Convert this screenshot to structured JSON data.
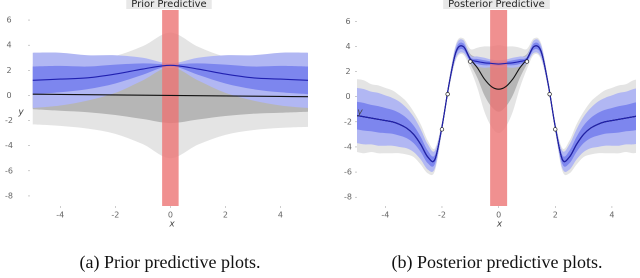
{
  "chart_data": [
    {
      "type": "line",
      "title": "Prior Predictive",
      "xlabel": "x",
      "ylabel": "y",
      "caption": "(a) Prior predictive plots.",
      "xlim": [
        -5.1,
        5.0
      ],
      "ylim": [
        -8.8,
        6.8
      ],
      "xticks": [
        -4,
        -2,
        0,
        2,
        4
      ],
      "yticks": [
        -8,
        -6,
        -4,
        -2,
        0,
        2,
        4,
        6
      ],
      "x": [
        -5,
        -4,
        -3,
        -2,
        -1,
        0,
        1,
        2,
        3,
        4,
        5
      ],
      "highlight": {
        "xlim": [
          -0.3,
          0.3
        ],
        "color": "#ec7474"
      },
      "series": [
        {
          "color": "#111111",
          "values": [
            0.1,
            0.08,
            0.06,
            0.04,
            0.02,
            0,
            -0.02,
            -0.04,
            -0.06,
            -0.08,
            -0.1
          ],
          "bands": [
            {
              "color": "#e4e4e4",
              "spread": [
                2.4,
                2.5,
                2.7,
                3.1,
                3.9,
                5.0,
                3.9,
                3.1,
                2.7,
                2.5,
                2.4
              ]
            },
            {
              "color": "#b6b6b6",
              "spread": [
                1.2,
                1.3,
                1.4,
                1.6,
                1.9,
                2.2,
                1.9,
                1.6,
                1.4,
                1.3,
                1.2
              ]
            }
          ]
        },
        {
          "color": "#2020b0",
          "values": [
            1.2,
            1.3,
            1.4,
            1.7,
            2.1,
            2.4,
            2.1,
            1.7,
            1.4,
            1.3,
            1.2
          ],
          "bands": [
            {
              "color": "#b1b7f3",
              "spread": [
                2.2,
                2.1,
                1.8,
                1.5,
                0.9,
                0.15,
                0.9,
                1.5,
                1.8,
                2.1,
                2.2
              ]
            },
            {
              "color": "#7d86ee",
              "spread": [
                1.1,
                1.05,
                0.9,
                0.75,
                0.45,
                0.08,
                0.45,
                0.75,
                0.9,
                1.05,
                1.1
              ]
            }
          ]
        }
      ]
    },
    {
      "type": "line",
      "title": "Posterior Predictive",
      "xlabel": "x",
      "ylabel": "y",
      "caption": "(b) Posterior predictive plots.",
      "xlim": [
        -5.0,
        4.85
      ],
      "ylim": [
        -8.7,
        6.9
      ],
      "xticks": [
        -4,
        -2,
        0,
        2,
        4
      ],
      "yticks": [
        -8,
        -6,
        -4,
        -2,
        0,
        2,
        4,
        6
      ],
      "x": [
        -5,
        -4.75,
        -4.5,
        -4.25,
        -4,
        -3.75,
        -3.5,
        -3.25,
        -3,
        -2.75,
        -2.5,
        -2.25,
        -2,
        -1.75,
        -1.5,
        -1.25,
        -1,
        -0.75,
        -0.5,
        -0.25,
        0,
        0.25,
        0.5,
        0.75,
        1,
        1.25,
        1.5,
        1.75,
        2,
        2.25,
        2.5,
        2.75,
        3,
        3.25,
        3.5,
        3.75,
        4,
        4.25,
        4.5,
        4.75,
        5
      ],
      "highlight": {
        "xlim": [
          -0.3,
          0.3
        ],
        "color": "#ec7474"
      },
      "series": [
        {
          "color": "#111111",
          "values": [
            -1.5,
            -1.6,
            -1.7,
            -1.8,
            -1.9,
            -2.0,
            -2.2,
            -2.5,
            -3.0,
            -3.8,
            -4.8,
            -5.0,
            -2.4,
            1.0,
            3.6,
            4.0,
            3.0,
            2.3,
            1.4,
            0.8,
            0.6,
            0.8,
            1.4,
            2.3,
            3.0,
            4.0,
            3.6,
            1.0,
            -2.4,
            -5.0,
            -4.8,
            -3.8,
            -3.0,
            -2.5,
            -2.2,
            -2.0,
            -1.9,
            -1.8,
            -1.7,
            -1.6,
            -1.5
          ],
          "bands": [
            {
              "color": "#e4e4e4",
              "spread": [
                2.9,
                2.9,
                2.7,
                2.7,
                2.6,
                2.5,
                2.3,
                2.1,
                1.8,
                1.6,
                1.3,
                0.9,
                0.4,
                0.4,
                0.65,
                0.65,
                0.8,
                1.6,
                2.6,
                3.2,
                3.5,
                3.2,
                2.6,
                1.6,
                0.8,
                0.65,
                0.65,
                0.4,
                0.4,
                0.9,
                1.3,
                1.6,
                1.8,
                2.1,
                2.3,
                2.5,
                2.6,
                2.7,
                2.7,
                2.9,
                2.9
              ]
            },
            {
              "color": "#b6b6b6",
              "spread": [
                1.45,
                1.45,
                1.35,
                1.35,
                1.3,
                1.25,
                1.15,
                1.05,
                0.9,
                0.8,
                0.65,
                0.45,
                0.2,
                0.2,
                0.33,
                0.33,
                0.4,
                0.8,
                1.3,
                1.6,
                1.8,
                1.6,
                1.3,
                0.8,
                0.4,
                0.33,
                0.33,
                0.2,
                0.2,
                0.45,
                0.65,
                0.8,
                0.9,
                1.05,
                1.15,
                1.25,
                1.3,
                1.35,
                1.35,
                1.45,
                1.45
              ]
            }
          ]
        },
        {
          "color": "#2020b0",
          "values": [
            -1.5,
            -1.6,
            -1.7,
            -1.8,
            -1.9,
            -2.0,
            -2.2,
            -2.5,
            -3.0,
            -3.8,
            -4.8,
            -5.0,
            -2.4,
            1.0,
            3.6,
            4.0,
            3.0,
            2.8,
            2.7,
            2.65,
            2.6,
            2.65,
            2.7,
            2.8,
            3.0,
            4.0,
            3.6,
            1.0,
            -2.4,
            -5.0,
            -4.8,
            -3.8,
            -3.0,
            -2.5,
            -2.2,
            -2.0,
            -1.9,
            -1.8,
            -1.7,
            -1.6,
            -1.5
          ],
          "bands": [
            {
              "color": "#b1b7f3",
              "spread": [
                2.2,
                2.2,
                2.1,
                2.1,
                2.0,
                1.9,
                1.8,
                1.6,
                1.4,
                1.2,
                1.0,
                0.7,
                0.3,
                0.3,
                0.5,
                0.5,
                0.3,
                0.4,
                0.4,
                0.3,
                0.3,
                0.3,
                0.4,
                0.4,
                0.3,
                0.5,
                0.5,
                0.3,
                0.3,
                0.7,
                1.0,
                1.2,
                1.4,
                1.6,
                1.8,
                1.9,
                2.0,
                2.1,
                2.1,
                2.2,
                2.2
              ]
            },
            {
              "color": "#7d86ee",
              "spread": [
                1.1,
                1.1,
                1.05,
                1.05,
                1.0,
                0.95,
                0.9,
                0.8,
                0.7,
                0.6,
                0.5,
                0.35,
                0.15,
                0.15,
                0.25,
                0.25,
                0.15,
                0.2,
                0.2,
                0.15,
                0.15,
                0.15,
                0.2,
                0.2,
                0.15,
                0.25,
                0.25,
                0.15,
                0.15,
                0.35,
                0.5,
                0.6,
                0.7,
                0.8,
                0.9,
                0.95,
                1.0,
                1.05,
                1.05,
                1.1,
                1.1
              ]
            }
          ]
        }
      ],
      "points": {
        "x": [
          -2.0,
          -1.8,
          -1.0,
          1.0,
          1.8,
          2.0
        ],
        "y": [
          -2.6,
          0.2,
          2.8,
          2.8,
          0.2,
          -2.6
        ]
      }
    }
  ]
}
